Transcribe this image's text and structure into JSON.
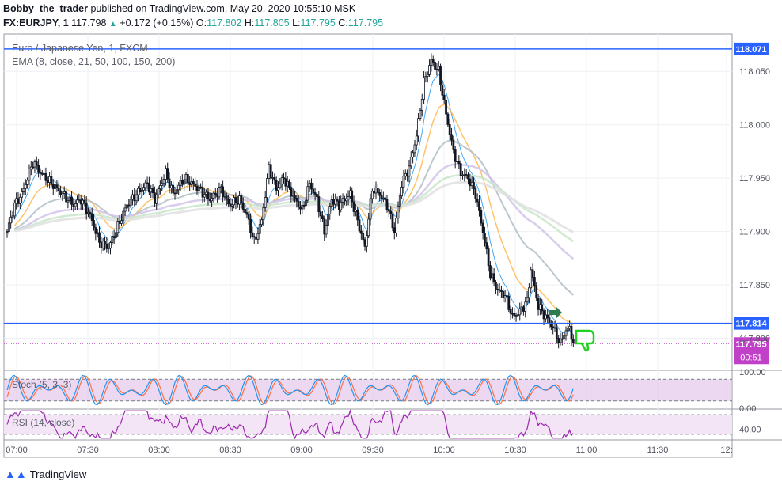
{
  "header": {
    "author": "Bobby_the_trader",
    "published_text": "published on TradingView.com, May 20, 2020 10:55:10 MSK",
    "symbol": "FX:EURJPY, 1",
    "last": "117.798",
    "change": "+0.172 (+0.15%)",
    "o_label": "O:",
    "o_value": "117.802",
    "h_label": "H:",
    "h_value": "117.805",
    "l_label": "L:",
    "l_value": "117.795",
    "c_label": "C:",
    "c_value": "117.795"
  },
  "footer": {
    "brand": "TradingView"
  },
  "chart_data": {
    "type": "candlestick",
    "legend": {
      "title": "Euro / Japanese Yen, 1, FXCM",
      "indicator": "EMA (8, close, 21, 50, 100, 150, 200)"
    },
    "x_tick_labels": [
      "07:00",
      "07:30",
      "08:00",
      "08:30",
      "09:00",
      "09:30",
      "10:00",
      "10:30",
      "11:00",
      "11:30",
      "12:"
    ],
    "y_tick_labels": [
      "118.050",
      "118.000",
      "117.950",
      "117.900",
      "117.850",
      "117.800"
    ],
    "ylim": [
      117.77,
      118.085
    ],
    "horizontal_lines": [
      {
        "label": "118.071",
        "value": 118.071,
        "color": "#2962ff"
      },
      {
        "label": "117.814",
        "value": 117.814,
        "color": "#2962ff"
      }
    ],
    "current_price": {
      "label": "117.795",
      "value": 117.795,
      "countdown": "00:51",
      "color": "#c040c8"
    },
    "close_anchors": [
      [
        0,
        117.9
      ],
      [
        4,
        117.925
      ],
      [
        8,
        117.935
      ],
      [
        14,
        117.965
      ],
      [
        18,
        117.955
      ],
      [
        24,
        117.945
      ],
      [
        30,
        117.935
      ],
      [
        36,
        117.925
      ],
      [
        40,
        117.93
      ],
      [
        45,
        117.915
      ],
      [
        50,
        117.89
      ],
      [
        55,
        117.885
      ],
      [
        60,
        117.905
      ],
      [
        65,
        117.925
      ],
      [
        70,
        117.935
      ],
      [
        76,
        117.945
      ],
      [
        80,
        117.93
      ],
      [
        86,
        117.955
      ],
      [
        90,
        117.935
      ],
      [
        96,
        117.95
      ],
      [
        104,
        117.94
      ],
      [
        110,
        117.93
      ],
      [
        116,
        117.94
      ],
      [
        120,
        117.925
      ],
      [
        126,
        117.93
      ],
      [
        130,
        117.915
      ],
      [
        134,
        117.89
      ],
      [
        138,
        117.91
      ],
      [
        142,
        117.96
      ],
      [
        146,
        117.94
      ],
      [
        150,
        117.95
      ],
      [
        156,
        117.93
      ],
      [
        160,
        117.92
      ],
      [
        164,
        117.945
      ],
      [
        168,
        117.93
      ],
      [
        172,
        117.9
      ],
      [
        176,
        117.93
      ],
      [
        180,
        117.925
      ],
      [
        186,
        117.935
      ],
      [
        190,
        117.91
      ],
      [
        194,
        117.885
      ],
      [
        198,
        117.94
      ],
      [
        202,
        117.935
      ],
      [
        206,
        117.925
      ],
      [
        210,
        117.9
      ],
      [
        214,
        117.945
      ],
      [
        218,
        117.96
      ],
      [
        222,
        117.99
      ],
      [
        226,
        118.04
      ],
      [
        230,
        118.06
      ],
      [
        234,
        118.05
      ],
      [
        238,
        118.01
      ],
      [
        242,
        117.975
      ],
      [
        246,
        117.955
      ],
      [
        250,
        117.95
      ],
      [
        254,
        117.935
      ],
      [
        258,
        117.9
      ],
      [
        262,
        117.86
      ],
      [
        266,
        117.845
      ],
      [
        270,
        117.84
      ],
      [
        274,
        117.82
      ],
      [
        278,
        117.825
      ],
      [
        282,
        117.835
      ],
      [
        284,
        117.865
      ],
      [
        288,
        117.83
      ],
      [
        292,
        117.82
      ],
      [
        296,
        117.81
      ],
      [
        300,
        117.795
      ],
      [
        302,
        117.805
      ],
      [
        305,
        117.81
      ],
      [
        307,
        117.795
      ]
    ],
    "series": [
      {
        "name": "EMA 8",
        "color": "#2196f3"
      },
      {
        "name": "EMA 21",
        "color": "#ffb74d"
      },
      {
        "name": "EMA 50",
        "color": "#b0bec5"
      },
      {
        "name": "EMA 100",
        "color": "#d1c4e9"
      },
      {
        "name": "EMA 150",
        "color": "#c8e6c9"
      },
      {
        "name": "EMA 200",
        "color": "#e0e0e0"
      }
    ],
    "stoch": {
      "label": "Stoch (5, 3, 3)",
      "y_tick_labels": [
        "100.00",
        "0.00"
      ],
      "band": [
        20,
        80
      ],
      "colors": {
        "k": "#2196f3",
        "d": "#ff7043",
        "band": "#e1bee7"
      }
    },
    "rsi": {
      "label": "RSI (14, close)",
      "y_tick_labels": [
        "40.00"
      ],
      "band": [
        30,
        70
      ],
      "ylim": [
        20,
        80
      ],
      "colors": {
        "line": "#9c27b0",
        "band": "#f3e5f5"
      }
    }
  }
}
